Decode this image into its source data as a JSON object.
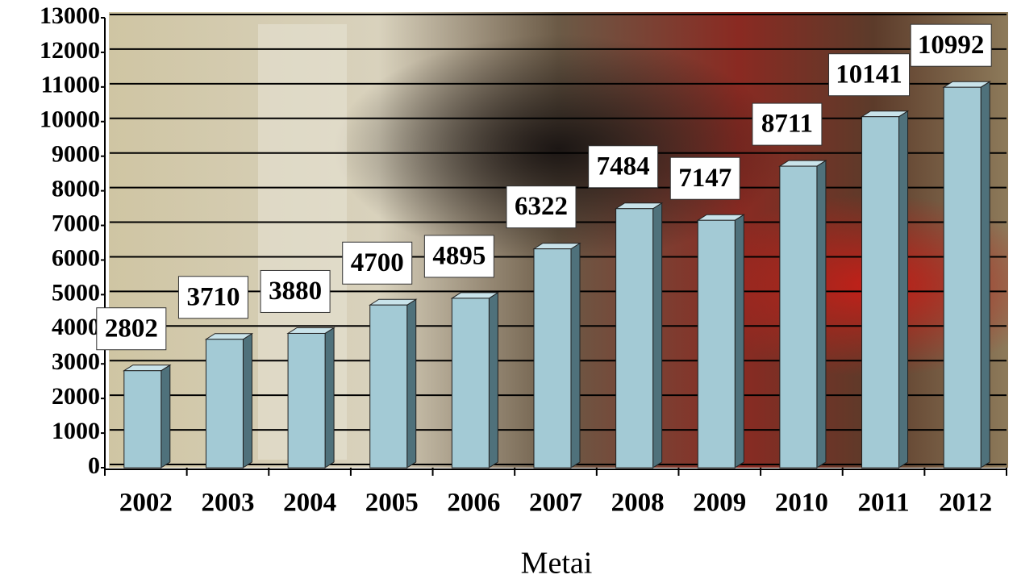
{
  "chart_data": {
    "type": "bar",
    "x_label": "Metai",
    "categories": [
      "2002",
      "2003",
      "2004",
      "2005",
      "2006",
      "2007",
      "2008",
      "2009",
      "2010",
      "2011",
      "2012"
    ],
    "values": [
      2802,
      3710,
      3880,
      4700,
      4895,
      6322,
      7484,
      7147,
      8711,
      10141,
      10992
    ],
    "color": "#a3cad5",
    "ylim": [
      0,
      13000
    ],
    "yticks": [
      0,
      1000,
      2000,
      3000,
      4000,
      5000,
      6000,
      7000,
      8000,
      9000,
      10000,
      11000,
      12000,
      13000
    ],
    "grid": true
  }
}
